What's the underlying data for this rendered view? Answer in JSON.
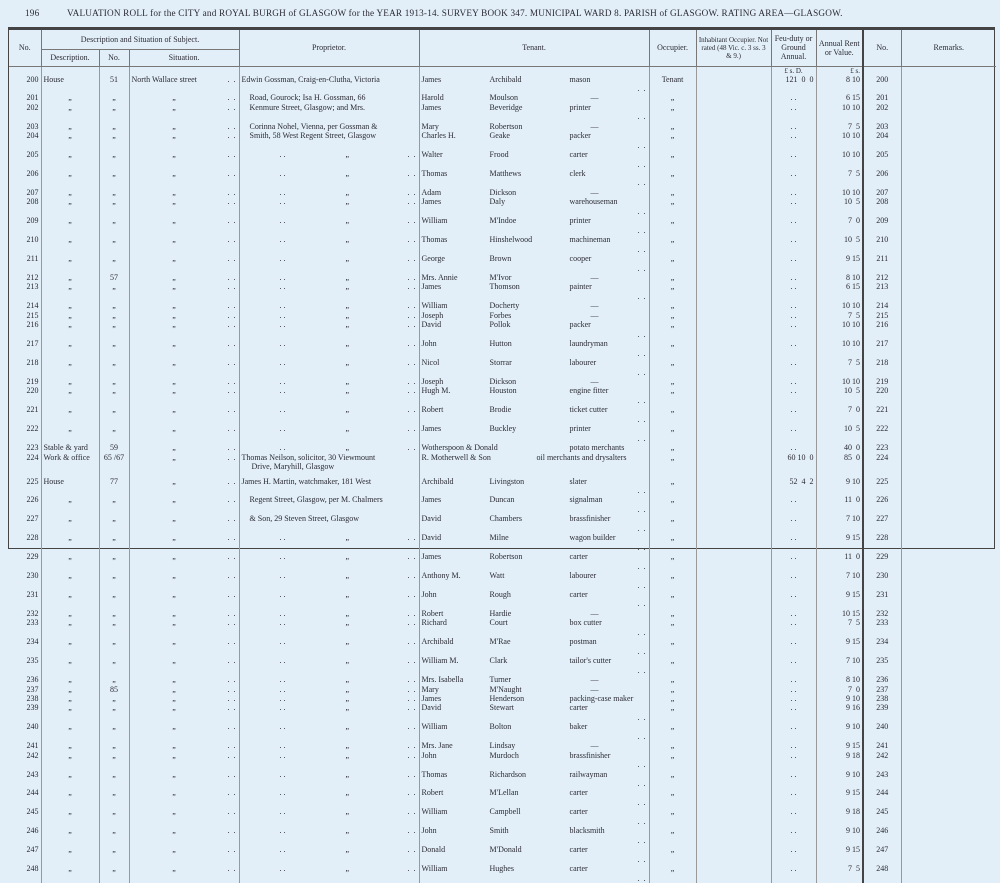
{
  "page": {
    "number": "196",
    "title": "VALUATION ROLL for the CITY and ROYAL BURGH of GLASGOW for the YEAR 1913-14.   SURVEY BOOK 347.   MUNICIPAL WARD 8.   PARISH of GLASGOW.   RATING AREA—GLASGOW."
  },
  "headers": {
    "no": "No.",
    "description_group": "Description and Situation of Subject.",
    "description": "Description.",
    "number": "No.",
    "situation": "Situation.",
    "proprietor": "Proprietor.",
    "tenant": "Tenant.",
    "occupier": "Occupier.",
    "inhabitant": "Inhabitant Occupier. Not rated (48 Vic. c. 3 ss. 3 & 9.)",
    "feu_duty": "Feu-duty or Ground Annual.",
    "annual_rent": "Annual Rent or Value.",
    "no2": "No.",
    "remarks": "Remarks.",
    "feu_units": "£  s.  D.",
    "rent_units": "£  s."
  },
  "rows": [
    {
      "no": "200",
      "desc": "House",
      "num": "51",
      "sit": "North Wallace street",
      "prop": "Edwin Gossman, Craig-en-Clutha, Victoria",
      "first": "James",
      "last": "Archibald",
      "occ": "mason",
      "occupier": "Tenant",
      "feu": "121  0  0",
      "rent": "8 10"
    },
    {
      "no": "201",
      "desc": "„",
      "num": "„",
      "sit": "„",
      "prop": "Road, Gourock; Isa H. Gossman, 66",
      "first": "Harold",
      "last": "Moulson",
      "occ": "—",
      "occupier": "„",
      "feu": "",
      "rent": "6 15"
    },
    {
      "no": "202",
      "desc": "„",
      "num": "„",
      "sit": "„",
      "prop": "Kenmure Street, Glasgow; and Mrs.",
      "first": "James",
      "last": "Beveridge",
      "occ": "printer",
      "occupier": "„",
      "feu": "",
      "rent": "10 10"
    },
    {
      "no": "203",
      "desc": "„",
      "num": "„",
      "sit": "„",
      "prop": "Corinna Nohel, Vienna, per Gossman &",
      "first": "Mary",
      "last": "Robertson",
      "occ": "—",
      "occupier": "„",
      "feu": "",
      "rent": "7  5"
    },
    {
      "no": "204",
      "desc": "„",
      "num": "„",
      "sit": "„",
      "prop": "Smith, 58 West Regent Street, Glasgow",
      "first": "Charles H.",
      "last": "Geake",
      "occ": "packer",
      "occupier": "„",
      "feu": "",
      "rent": "10 10"
    },
    {
      "no": "205",
      "desc": "„",
      "num": "„",
      "sit": "„",
      "prop": "„",
      "first": "Walter",
      "last": "Frood",
      "occ": "carter",
      "occupier": "„",
      "feu": "",
      "rent": "10 10"
    },
    {
      "no": "206",
      "desc": "„",
      "num": "„",
      "sit": "„",
      "prop": "„",
      "first": "Thomas",
      "last": "Matthews",
      "occ": "clerk",
      "occupier": "„",
      "feu": "",
      "rent": "7  5"
    },
    {
      "no": "207",
      "desc": "„",
      "num": "„",
      "sit": "„",
      "prop": "„",
      "first": "Adam",
      "last": "Dickson",
      "occ": "—",
      "occupier": "„",
      "feu": "",
      "rent": "10 10"
    },
    {
      "no": "208",
      "desc": "„",
      "num": "„",
      "sit": "„",
      "prop": "„",
      "first": "James",
      "last": "Daly",
      "occ": "warehouseman",
      "occupier": "„",
      "feu": "",
      "rent": "10  5"
    },
    {
      "no": "209",
      "desc": "„",
      "num": "„",
      "sit": "„",
      "prop": "„",
      "first": "William",
      "last": "M'Indoe",
      "occ": "printer",
      "occupier": "„",
      "feu": "",
      "rent": "7  0"
    },
    {
      "no": "210",
      "desc": "„",
      "num": "„",
      "sit": "„",
      "prop": "„",
      "first": "Thomas",
      "last": "Hinshelwood",
      "occ": "machineman",
      "occupier": "„",
      "feu": "",
      "rent": "10  5"
    },
    {
      "no": "211",
      "desc": "„",
      "num": "„",
      "sit": "„",
      "prop": "„",
      "first": "George",
      "last": "Brown",
      "occ": "cooper",
      "occupier": "„",
      "feu": "",
      "rent": "9 15"
    },
    {
      "no": "212",
      "desc": "„",
      "num": "57",
      "sit": "„",
      "prop": "„",
      "first": "Mrs. Annie",
      "last": "M'Ivor",
      "occ": "—",
      "occupier": "„",
      "feu": "",
      "rent": "8 10"
    },
    {
      "no": "213",
      "desc": "„",
      "num": "„",
      "sit": "„",
      "prop": "„",
      "first": "James",
      "last": "Thomson",
      "occ": "painter",
      "occupier": "„",
      "feu": "",
      "rent": "6 15"
    },
    {
      "no": "214",
      "desc": "„",
      "num": "„",
      "sit": "„",
      "prop": "„",
      "first": "William",
      "last": "Docherty",
      "occ": "—",
      "occupier": "„",
      "feu": "",
      "rent": "10 10"
    },
    {
      "no": "215",
      "desc": "„",
      "num": "„",
      "sit": "„",
      "prop": "„",
      "first": "Joseph",
      "last": "Forbes",
      "occ": "—",
      "occupier": "„",
      "feu": "",
      "rent": "7  5"
    },
    {
      "no": "216",
      "desc": "„",
      "num": "„",
      "sit": "„",
      "prop": "„",
      "first": "David",
      "last": "Pollok",
      "occ": "packer",
      "occupier": "„",
      "feu": "",
      "rent": "10 10"
    },
    {
      "no": "217",
      "desc": "„",
      "num": "„",
      "sit": "„",
      "prop": "„",
      "first": "John",
      "last": "Hutton",
      "occ": "laundryman",
      "occupier": "„",
      "feu": "",
      "rent": "10 10"
    },
    {
      "no": "218",
      "desc": "„",
      "num": "„",
      "sit": "„",
      "prop": "„",
      "first": "Nicol",
      "last": "Storrar",
      "occ": "labourer",
      "occupier": "„",
      "feu": "",
      "rent": "7  5"
    },
    {
      "no": "219",
      "desc": "„",
      "num": "„",
      "sit": "„",
      "prop": "„",
      "first": "Joseph",
      "last": "Dickson",
      "occ": "—",
      "occupier": "„",
      "feu": "",
      "rent": "10 10"
    },
    {
      "no": "220",
      "desc": "„",
      "num": "„",
      "sit": "„",
      "prop": "„",
      "first": "Hugh M.",
      "last": "Houston",
      "occ": "engine fitter",
      "occupier": "„",
      "feu": "",
      "rent": "10  5"
    },
    {
      "no": "221",
      "desc": "„",
      "num": "„",
      "sit": "„",
      "prop": "„",
      "first": "Robert",
      "last": "Brodie",
      "occ": "ticket cutter",
      "occupier": "„",
      "feu": "",
      "rent": "7  0"
    },
    {
      "no": "222",
      "desc": "„",
      "num": "„",
      "sit": "„",
      "prop": "„",
      "first": "James",
      "last": "Buckley",
      "occ": "printer",
      "occupier": "„",
      "feu": "",
      "rent": "10  5"
    },
    {
      "no": "223",
      "desc": "Stable & yard",
      "num": "59",
      "sit": "„",
      "prop": "„",
      "first": "Wotherspoon & Donald",
      "last": "",
      "occ": "potato merchants",
      "occupier": "„",
      "feu": "",
      "rent": "40  0"
    },
    {
      "no": "224",
      "desc": "Work & office",
      "num": "65 /67",
      "sit": "„",
      "prop": "Thomas Neilson, solicitor, 30 Viewmount",
      "prop2": "Drive, Maryhill, Glasgow",
      "first": "R. Motherwell & Son",
      "last": "",
      "occ": "oil merchants and drysalters",
      "occupier": "„",
      "feu": "60 10  0",
      "rent": "85  0"
    },
    {
      "no": "225",
      "desc": "House",
      "num": "77",
      "sit": "„",
      "prop": "James H. Martin, watchmaker, 181 West",
      "first": "Archibald",
      "last": "Livingston",
      "occ": "slater",
      "occupier": "„",
      "feu": "52  4  2",
      "rent": "9 10"
    },
    {
      "no": "226",
      "desc": "„",
      "num": "„",
      "sit": "„",
      "prop": "Regent Street, Glasgow, per M. Chalmers",
      "first": "James",
      "last": "Duncan",
      "occ": "signalman",
      "occupier": "„",
      "feu": "",
      "rent": "11  0"
    },
    {
      "no": "227",
      "desc": "„",
      "num": "„",
      "sit": "„",
      "prop": "& Son, 29 Steven Street, Glasgow",
      "first": "David",
      "last": "Chambers",
      "occ": "brassfinisher",
      "occupier": "„",
      "feu": "",
      "rent": "7 10"
    },
    {
      "no": "228",
      "desc": "„",
      "num": "„",
      "sit": "„",
      "prop": "„",
      "first": "David",
      "last": "Milne",
      "occ": "wagon builder",
      "occupier": "„",
      "feu": "",
      "rent": "9 15"
    },
    {
      "no": "229",
      "desc": "„",
      "num": "„",
      "sit": "„",
      "prop": "„",
      "first": "James",
      "last": "Robertson",
      "occ": "carter",
      "occupier": "„",
      "feu": "",
      "rent": "11  0"
    },
    {
      "no": "230",
      "desc": "„",
      "num": "„",
      "sit": "„",
      "prop": "„",
      "first": "Anthony M.",
      "last": "Watt",
      "occ": "labourer",
      "occupier": "„",
      "feu": "",
      "rent": "7 10"
    },
    {
      "no": "231",
      "desc": "„",
      "num": "„",
      "sit": "„",
      "prop": "„",
      "first": "John",
      "last": "Rough",
      "occ": "carter",
      "occupier": "„",
      "feu": "",
      "rent": "9 15"
    },
    {
      "no": "232",
      "desc": "„",
      "num": "„",
      "sit": "„",
      "prop": "„",
      "first": "Robert",
      "last": "Hardie",
      "occ": "—",
      "occupier": "„",
      "feu": "",
      "rent": "10 15"
    },
    {
      "no": "233",
      "desc": "„",
      "num": "„",
      "sit": "„",
      "prop": "„",
      "first": "Richard",
      "last": "Court",
      "occ": "box cutter",
      "occupier": "„",
      "feu": "",
      "rent": "7  5"
    },
    {
      "no": "234",
      "desc": "„",
      "num": "„",
      "sit": "„",
      "prop": "„",
      "first": "Archibald",
      "last": "M'Rae",
      "occ": "postman",
      "occupier": "„",
      "feu": "",
      "rent": "9 15"
    },
    {
      "no": "235",
      "desc": "„",
      "num": "„",
      "sit": "„",
      "prop": "„",
      "first": "William M.",
      "last": "Clark",
      "occ": "tailor's cutter",
      "occupier": "„",
      "feu": "",
      "rent": "7 10"
    },
    {
      "no": "236",
      "desc": "„",
      "num": "„",
      "sit": "„",
      "prop": "„",
      "first": "Mrs. Isabella",
      "last": "Turner",
      "occ": "—",
      "occupier": "„",
      "feu": "",
      "rent": "8 10"
    },
    {
      "no": "237",
      "desc": "„",
      "num": "85",
      "sit": "„",
      "prop": "„",
      "first": "Mary",
      "last": "M'Naught",
      "occ": "—",
      "occupier": "„",
      "feu": "",
      "rent": "7  0"
    },
    {
      "no": "238",
      "desc": "„",
      "num": "„",
      "sit": "„",
      "prop": "„",
      "first": "James",
      "last": "Henderson",
      "occ": "packing-case maker",
      "occupier": "„",
      "feu": "",
      "rent": "9 10"
    },
    {
      "no": "239",
      "desc": "„",
      "num": "„",
      "sit": "„",
      "prop": "„",
      "first": "David",
      "last": "Stewart",
      "occ": "carter",
      "occupier": "„",
      "feu": "",
      "rent": "9 16"
    },
    {
      "no": "240",
      "desc": "„",
      "num": "„",
      "sit": "„",
      "prop": "„",
      "first": "William",
      "last": "Bolton",
      "occ": "baker",
      "occupier": "„",
      "feu": "",
      "rent": "9 10"
    },
    {
      "no": "241",
      "desc": "„",
      "num": "„",
      "sit": "„",
      "prop": "„",
      "first": "Mrs. Jane",
      "last": "Lindsay",
      "occ": "—",
      "occupier": "„",
      "feu": "",
      "rent": "9 15"
    },
    {
      "no": "242",
      "desc": "„",
      "num": "„",
      "sit": "„",
      "prop": "„",
      "first": "John",
      "last": "Murdoch",
      "occ": "brassfinisher",
      "occupier": "„",
      "feu": "",
      "rent": "9 18"
    },
    {
      "no": "243",
      "desc": "„",
      "num": "„",
      "sit": "„",
      "prop": "„",
      "first": "Thomas",
      "last": "Richardson",
      "occ": "railwayman",
      "occupier": "„",
      "feu": "",
      "rent": "9 10"
    },
    {
      "no": "244",
      "desc": "„",
      "num": "„",
      "sit": "„",
      "prop": "„",
      "first": "Robert",
      "last": "M'Lellan",
      "occ": "carter",
      "occupier": "„",
      "feu": "",
      "rent": "9 15"
    },
    {
      "no": "245",
      "desc": "„",
      "num": "„",
      "sit": "„",
      "prop": "„",
      "first": "William",
      "last": "Campbell",
      "occ": "carter",
      "occupier": "„",
      "feu": "",
      "rent": "9 18"
    },
    {
      "no": "246",
      "desc": "„",
      "num": "„",
      "sit": "„",
      "prop": "„",
      "first": "John",
      "last": "Smith",
      "occ": "blacksmith",
      "occupier": "„",
      "feu": "",
      "rent": "9 10"
    },
    {
      "no": "247",
      "desc": "„",
      "num": "„",
      "sit": "„",
      "prop": "„",
      "first": "Donald",
      "last": "M'Donald",
      "occ": "carter",
      "occupier": "„",
      "feu": "",
      "rent": "9 15"
    },
    {
      "no": "248",
      "desc": "„",
      "num": "„",
      "sit": "„",
      "prop": "„",
      "first": "William",
      "last": "Hughes",
      "occ": "carter",
      "occupier": "„",
      "feu": "",
      "rent": "7  5"
    }
  ]
}
